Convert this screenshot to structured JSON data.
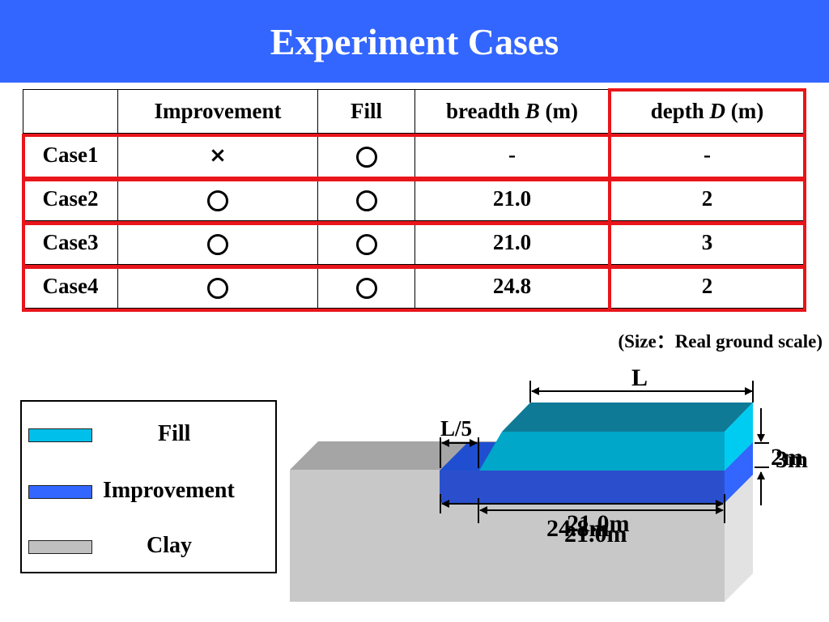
{
  "slide": {
    "title": "Experiment Cases",
    "title_bar_color": "#3366ff",
    "highlight_color": "#e8151b"
  },
  "table": {
    "headers": {
      "case": "",
      "improvement": "Improvement",
      "fill": "Fill",
      "breadth_label": "breadth",
      "breadth_symbol": "B",
      "breadth_unit": "(m)",
      "depth_label": "depth",
      "depth_symbol": "D",
      "depth_unit": "(m)"
    },
    "rows": [
      {
        "case": "Case1",
        "improvement": "×",
        "fill": "circle",
        "breadth": "-",
        "depth": "-"
      },
      {
        "case": "Case2",
        "improvement": "circle",
        "fill": "circle",
        "breadth": "21.0",
        "depth": "2"
      },
      {
        "case": "Case3",
        "improvement": "circle",
        "fill": "circle",
        "breadth": "21.0",
        "depth": "3"
      },
      {
        "case": "Case4",
        "improvement": "circle",
        "fill": "circle",
        "breadth": "24.8",
        "depth": "2"
      }
    ]
  },
  "note": "(Size：Real ground scale)",
  "legend": {
    "items": [
      {
        "label": "Fill",
        "color": "#00bfea"
      },
      {
        "label": "Improvement",
        "color": "#3366ff"
      },
      {
        "label": "Clay",
        "color": "#c0c0c0"
      }
    ]
  },
  "diagram": {
    "L": "L",
    "L5": "L/5",
    "depth_a": "2m",
    "depth_b": "3m",
    "breadth_a": "24.8m",
    "breadth_b": "21.0m",
    "breadth_c": "21.0m"
  }
}
